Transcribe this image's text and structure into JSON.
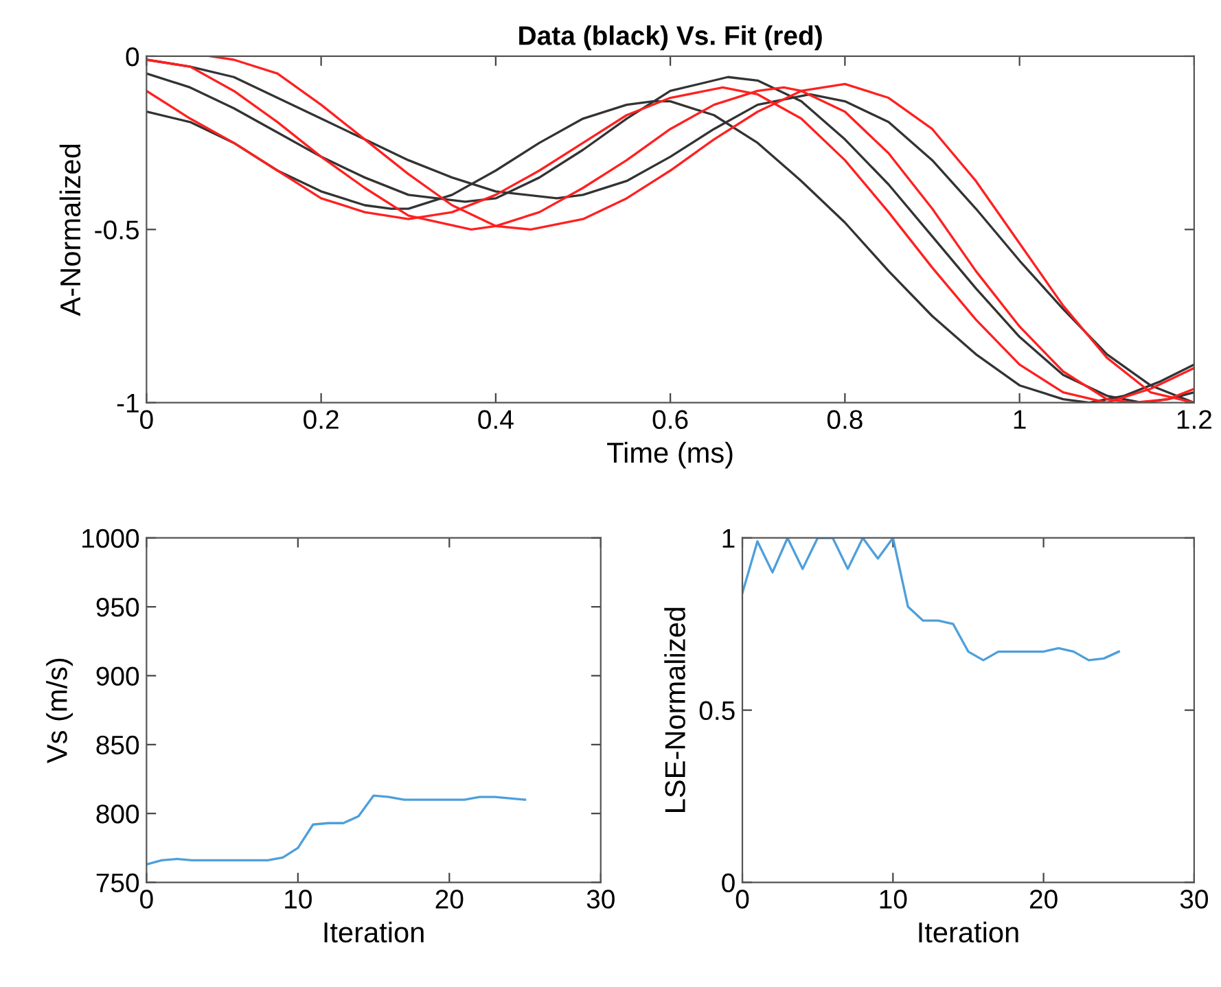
{
  "chart_data": [
    {
      "type": "line",
      "title": "Data (black) Vs. Fit (red)",
      "xlabel": "Time (ms)",
      "ylabel": "A-Normalized",
      "xlim": [
        0,
        1.2
      ],
      "xticks": [
        0,
        0.2,
        0.4,
        0.6,
        0.8,
        1,
        1.2
      ],
      "ylim": [
        -1,
        0
      ],
      "yticks": [
        -1,
        -0.5,
        0
      ],
      "grid": false,
      "legend": false,
      "series": [
        {
          "color": "#333333",
          "x": [
            0,
            0.05,
            0.1,
            0.15,
            0.2,
            0.25,
            0.28,
            0.3,
            0.35,
            0.4,
            0.45,
            0.5,
            0.55,
            0.58,
            0.6,
            0.65,
            0.7,
            0.75,
            0.8,
            0.85,
            0.9,
            0.95,
            1.0,
            1.05,
            1.08,
            1.12,
            1.16,
            1.2
          ],
          "values": [
            -0.16,
            -0.19,
            -0.25,
            -0.33,
            -0.39,
            -0.43,
            -0.44,
            -0.44,
            -0.4,
            -0.33,
            -0.25,
            -0.18,
            -0.14,
            -0.13,
            -0.13,
            -0.17,
            -0.25,
            -0.36,
            -0.48,
            -0.62,
            -0.75,
            -0.86,
            -0.95,
            -0.99,
            -1.0,
            -0.98,
            -0.94,
            -0.89
          ]
        },
        {
          "color": "#333333",
          "x": [
            0,
            0.05,
            0.1,
            0.15,
            0.2,
            0.25,
            0.3,
            0.365,
            0.4,
            0.45,
            0.5,
            0.55,
            0.6,
            0.666,
            0.7,
            0.75,
            0.8,
            0.85,
            0.9,
            0.95,
            1.0,
            1.05,
            1.1,
            1.14,
            1.17,
            1.2
          ],
          "values": [
            -0.05,
            -0.09,
            -0.15,
            -0.22,
            -0.29,
            -0.35,
            -0.4,
            -0.42,
            -0.41,
            -0.35,
            -0.27,
            -0.18,
            -0.1,
            -0.06,
            -0.07,
            -0.13,
            -0.24,
            -0.37,
            -0.52,
            -0.67,
            -0.81,
            -0.92,
            -0.98,
            -1.0,
            -0.99,
            -0.97
          ]
        },
        {
          "color": "#333333",
          "x": [
            0,
            0.05,
            0.1,
            0.15,
            0.2,
            0.25,
            0.3,
            0.35,
            0.4,
            0.47,
            0.5,
            0.55,
            0.6,
            0.65,
            0.7,
            0.76,
            0.8,
            0.85,
            0.9,
            0.95,
            1.0,
            1.05,
            1.1,
            1.15,
            1.2
          ],
          "values": [
            -0.01,
            -0.03,
            -0.06,
            -0.12,
            -0.18,
            -0.24,
            -0.3,
            -0.35,
            -0.39,
            -0.41,
            -0.4,
            -0.36,
            -0.29,
            -0.21,
            -0.14,
            -0.11,
            -0.13,
            -0.19,
            -0.3,
            -0.44,
            -0.59,
            -0.73,
            -0.86,
            -0.95,
            -1.0
          ]
        },
        {
          "color": "#ff2020",
          "x": [
            0.073,
            0.1,
            0.15,
            0.2,
            0.25,
            0.3,
            0.35,
            0.4,
            0.44,
            0.5,
            0.55,
            0.6,
            0.65,
            0.7,
            0.75,
            0.8,
            0.85,
            0.9,
            0.95,
            1.0,
            1.05,
            1.1,
            1.15,
            1.2
          ],
          "values": [
            0,
            -0.01,
            -0.05,
            -0.14,
            -0.24,
            -0.34,
            -0.43,
            -0.49,
            -0.5,
            -0.47,
            -0.41,
            -0.33,
            -0.24,
            -0.16,
            -0.1,
            -0.08,
            -0.12,
            -0.21,
            -0.36,
            -0.54,
            -0.72,
            -0.87,
            -0.97,
            -1.0
          ]
        },
        {
          "color": "#ff2020",
          "x": [
            0,
            0.05,
            0.1,
            0.15,
            0.2,
            0.25,
            0.3,
            0.372,
            0.4,
            0.45,
            0.5,
            0.55,
            0.6,
            0.65,
            0.7,
            0.73,
            0.75,
            0.8,
            0.85,
            0.9,
            0.95,
            1.0,
            1.05,
            1.1,
            1.13,
            1.17,
            1.2
          ],
          "values": [
            -0.01,
            -0.03,
            -0.1,
            -0.19,
            -0.29,
            -0.38,
            -0.46,
            -0.5,
            -0.49,
            -0.45,
            -0.38,
            -0.3,
            -0.21,
            -0.14,
            -0.1,
            -0.09,
            -0.1,
            -0.16,
            -0.28,
            -0.44,
            -0.62,
            -0.78,
            -0.91,
            -0.99,
            -1.0,
            -0.99,
            -0.96
          ]
        },
        {
          "color": "#ff2020",
          "x": [
            0,
            0.05,
            0.1,
            0.15,
            0.2,
            0.25,
            0.3,
            0.35,
            0.4,
            0.45,
            0.5,
            0.55,
            0.6,
            0.66,
            0.7,
            0.75,
            0.8,
            0.85,
            0.9,
            0.95,
            1.0,
            1.05,
            1.1,
            1.15,
            1.2
          ],
          "values": [
            -0.1,
            -0.18,
            -0.25,
            -0.33,
            -0.41,
            -0.45,
            -0.47,
            -0.45,
            -0.4,
            -0.33,
            -0.25,
            -0.17,
            -0.12,
            -0.09,
            -0.11,
            -0.18,
            -0.3,
            -0.45,
            -0.61,
            -0.76,
            -0.89,
            -0.97,
            -1.0,
            -0.96,
            -0.9
          ]
        }
      ]
    },
    {
      "type": "line",
      "xlabel": "Iteration",
      "ylabel": "Vs (m/s)",
      "xlim": [
        0,
        30
      ],
      "xticks": [
        0,
        10,
        20,
        30
      ],
      "ylim": [
        750,
        1000
      ],
      "yticks": [
        750,
        800,
        850,
        900,
        950,
        1000
      ],
      "grid": false,
      "legend": false,
      "series": [
        {
          "color": "#4d9fdc",
          "x": [
            0,
            1,
            2,
            3,
            4,
            5,
            6,
            7,
            8,
            9,
            10,
            11,
            12,
            13,
            14,
            15,
            16,
            17,
            18,
            19,
            20,
            21,
            22,
            23,
            24,
            25
          ],
          "values": [
            763,
            766,
            767,
            766,
            766,
            766,
            766,
            766,
            766,
            768,
            775,
            792,
            793,
            793,
            798,
            813,
            812,
            810,
            810,
            810,
            810,
            810,
            812,
            812,
            811,
            810
          ]
        }
      ]
    },
    {
      "type": "line",
      "xlabel": "Iteration",
      "ylabel": "LSE-Normalized",
      "xlim": [
        0,
        30
      ],
      "xticks": [
        0,
        10,
        20,
        30
      ],
      "ylim": [
        0,
        1
      ],
      "yticks": [
        0,
        0.5,
        1
      ],
      "grid": false,
      "legend": false,
      "series": [
        {
          "color": "#4d9fdc",
          "x": [
            0,
            1,
            2,
            3,
            4,
            5,
            6,
            7,
            8,
            9,
            10,
            11,
            12,
            13,
            14,
            15,
            16,
            17,
            18,
            19,
            20,
            21,
            22,
            23,
            24,
            25
          ],
          "values": [
            0.84,
            0.99,
            0.9,
            1.0,
            0.91,
            1.0,
            1.0,
            0.91,
            1.0,
            0.94,
            1.0,
            0.8,
            0.76,
            0.76,
            0.75,
            0.67,
            0.645,
            0.67,
            0.67,
            0.67,
            0.67,
            0.68,
            0.67,
            0.645,
            0.65,
            0.67
          ]
        }
      ]
    }
  ]
}
